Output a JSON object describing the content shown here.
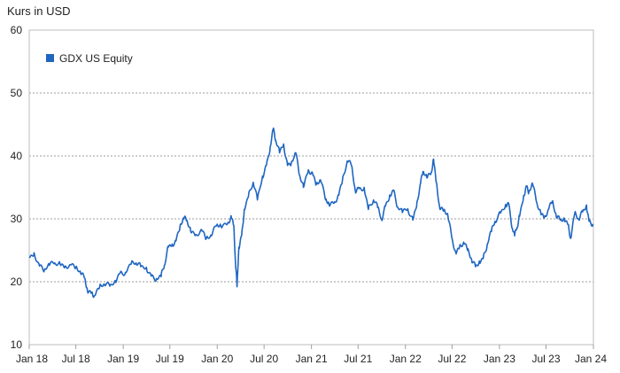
{
  "chart_data": {
    "type": "line",
    "ylabel": "Kurs in USD",
    "ylim": [
      10,
      60
    ],
    "yticks": [
      "60",
      "50",
      "40",
      "30",
      "20",
      "10"
    ],
    "xlim": [
      "2018-01",
      "2024-01"
    ],
    "xticks": [
      {
        "label": "Jan 18",
        "date": "2018-01"
      },
      {
        "label": "Jul 18",
        "date": "2018-07"
      },
      {
        "label": "Jan 19",
        "date": "2019-01"
      },
      {
        "label": "Jul 19",
        "date": "2019-07"
      },
      {
        "label": "Jan 20",
        "date": "2020-01"
      },
      {
        "label": "Jul 20",
        "date": "2020-07"
      },
      {
        "label": "Jan 21",
        "date": "2021-01"
      },
      {
        "label": "Jul 21",
        "date": "2021-07"
      },
      {
        "label": "Jan 22",
        "date": "2022-01"
      },
      {
        "label": "Jul 22",
        "date": "2022-07"
      },
      {
        "label": "Jan 23",
        "date": "2023-01"
      },
      {
        "label": "Jul 23",
        "date": "2023-07"
      },
      {
        "label": "Jan 24",
        "date": "2024-01"
      }
    ],
    "grid": true,
    "legend_position": "top-left",
    "series": [
      {
        "name": "GDX US Equity",
        "color": "#1f66c1",
        "points": [
          [
            "2018-01-02",
            23.8
          ],
          [
            "2018-01-20",
            24.6
          ],
          [
            "2018-02-10",
            22.5
          ],
          [
            "2018-03-01",
            21.9
          ],
          [
            "2018-03-20",
            22.6
          ],
          [
            "2018-04-10",
            23.0
          ],
          [
            "2018-05-01",
            22.8
          ],
          [
            "2018-05-20",
            22.5
          ],
          [
            "2018-06-10",
            22.7
          ],
          [
            "2018-07-01",
            22.3
          ],
          [
            "2018-07-20",
            21.3
          ],
          [
            "2018-08-05",
            20.5
          ],
          [
            "2018-08-15",
            18.6
          ],
          [
            "2018-09-01",
            18.3
          ],
          [
            "2018-09-12",
            17.8
          ],
          [
            "2018-10-01",
            19.1
          ],
          [
            "2018-10-20",
            19.6
          ],
          [
            "2018-11-10",
            19.3
          ],
          [
            "2018-12-01",
            20.2
          ],
          [
            "2018-12-20",
            21.4
          ],
          [
            "2019-01-10",
            21.5
          ],
          [
            "2019-02-01",
            22.8
          ],
          [
            "2019-02-20",
            23.0
          ],
          [
            "2019-03-10",
            22.4
          ],
          [
            "2019-04-01",
            22.3
          ],
          [
            "2019-04-20",
            20.9
          ],
          [
            "2019-05-10",
            20.5
          ],
          [
            "2019-05-28",
            20.8
          ],
          [
            "2019-06-10",
            22.6
          ],
          [
            "2019-06-25",
            25.5
          ],
          [
            "2019-07-10",
            26.0
          ],
          [
            "2019-07-25",
            26.5
          ],
          [
            "2019-08-10",
            29.0
          ],
          [
            "2019-08-25",
            30.0
          ],
          [
            "2019-09-05",
            29.8
          ],
          [
            "2019-09-20",
            28.0
          ],
          [
            "2019-10-10",
            27.5
          ],
          [
            "2019-11-01",
            28.3
          ],
          [
            "2019-11-20",
            26.9
          ],
          [
            "2019-12-10",
            27.3
          ],
          [
            "2019-12-30",
            29.0
          ],
          [
            "2020-01-15",
            28.9
          ],
          [
            "2020-02-10",
            29.2
          ],
          [
            "2020-02-24",
            30.5
          ],
          [
            "2020-03-05",
            29.0
          ],
          [
            "2020-03-12",
            23.0
          ],
          [
            "2020-03-18",
            19.2
          ],
          [
            "2020-03-25",
            25.5
          ],
          [
            "2020-04-05",
            27.4
          ],
          [
            "2020-04-15",
            31.5
          ],
          [
            "2020-05-01",
            33.5
          ],
          [
            "2020-05-20",
            35.8
          ],
          [
            "2020-06-05",
            33.0
          ],
          [
            "2020-06-25",
            36.8
          ],
          [
            "2020-07-10",
            38.5
          ],
          [
            "2020-07-25",
            41.5
          ],
          [
            "2020-08-05",
            44.2
          ],
          [
            "2020-08-15",
            42.5
          ],
          [
            "2020-08-30",
            40.5
          ],
          [
            "2020-09-15",
            41.9
          ],
          [
            "2020-09-30",
            38.5
          ],
          [
            "2020-10-15",
            39.0
          ],
          [
            "2020-11-01",
            40.5
          ],
          [
            "2020-11-15",
            37.0
          ],
          [
            "2020-12-01",
            35.0
          ],
          [
            "2020-12-20",
            37.8
          ],
          [
            "2021-01-05",
            37.3
          ],
          [
            "2021-01-20",
            35.5
          ],
          [
            "2021-02-05",
            36.2
          ],
          [
            "2021-02-25",
            33.0
          ],
          [
            "2021-03-10",
            32.3
          ],
          [
            "2021-03-30",
            32.5
          ],
          [
            "2021-04-15",
            33.8
          ],
          [
            "2021-05-01",
            36.0
          ],
          [
            "2021-05-20",
            39.2
          ],
          [
            "2021-06-05",
            38.5
          ],
          [
            "2021-06-20",
            34.5
          ],
          [
            "2021-07-05",
            34.8
          ],
          [
            "2021-07-25",
            35.0
          ],
          [
            "2021-08-10",
            31.5
          ],
          [
            "2021-08-30",
            33.0
          ],
          [
            "2021-09-15",
            31.8
          ],
          [
            "2021-09-30",
            29.9
          ],
          [
            "2021-10-15",
            32.0
          ],
          [
            "2021-11-01",
            33.8
          ],
          [
            "2021-11-15",
            34.5
          ],
          [
            "2021-12-01",
            31.9
          ],
          [
            "2021-12-20",
            31.0
          ],
          [
            "2022-01-10",
            31.6
          ],
          [
            "2022-01-30",
            29.8
          ],
          [
            "2022-02-15",
            32.7
          ],
          [
            "2022-03-01",
            35.7
          ],
          [
            "2022-03-10",
            37.5
          ],
          [
            "2022-03-25",
            36.5
          ],
          [
            "2022-04-10",
            37.2
          ],
          [
            "2022-04-20",
            39.5
          ],
          [
            "2022-05-01",
            35.8
          ],
          [
            "2022-05-15",
            31.5
          ],
          [
            "2022-05-30",
            31.3
          ],
          [
            "2022-06-15",
            30.5
          ],
          [
            "2022-06-30",
            27.0
          ],
          [
            "2022-07-15",
            24.7
          ],
          [
            "2022-07-30",
            25.5
          ],
          [
            "2022-08-15",
            26.3
          ],
          [
            "2022-08-30",
            25.0
          ],
          [
            "2022-09-15",
            23.5
          ],
          [
            "2022-09-30",
            22.4
          ],
          [
            "2022-10-15",
            23.3
          ],
          [
            "2022-10-30",
            23.7
          ],
          [
            "2022-11-15",
            26.0
          ],
          [
            "2022-12-01",
            28.0
          ],
          [
            "2022-12-15",
            29.6
          ],
          [
            "2023-01-05",
            30.9
          ],
          [
            "2023-01-25",
            32.3
          ],
          [
            "2023-02-05",
            32.5
          ],
          [
            "2023-02-20",
            28.5
          ],
          [
            "2023-03-01",
            27.3
          ],
          [
            "2023-03-10",
            28.6
          ],
          [
            "2023-03-20",
            30.4
          ],
          [
            "2023-04-05",
            33.7
          ],
          [
            "2023-04-15",
            35.2
          ],
          [
            "2023-04-25",
            34.2
          ],
          [
            "2023-05-10",
            35.5
          ],
          [
            "2023-05-25",
            32.7
          ],
          [
            "2023-06-10",
            31.0
          ],
          [
            "2023-06-25",
            30.3
          ],
          [
            "2023-07-10",
            31.5
          ],
          [
            "2023-07-25",
            32.8
          ],
          [
            "2023-08-10",
            30.3
          ],
          [
            "2023-08-25",
            29.8
          ],
          [
            "2023-09-10",
            30.1
          ],
          [
            "2023-09-25",
            29.1
          ],
          [
            "2023-10-05",
            26.9
          ],
          [
            "2023-10-20",
            30.8
          ],
          [
            "2023-11-05",
            29.9
          ],
          [
            "2023-11-20",
            31.1
          ],
          [
            "2023-12-05",
            32.2
          ],
          [
            "2023-12-15",
            29.6
          ],
          [
            "2023-12-30",
            29.2
          ]
        ]
      }
    ]
  }
}
